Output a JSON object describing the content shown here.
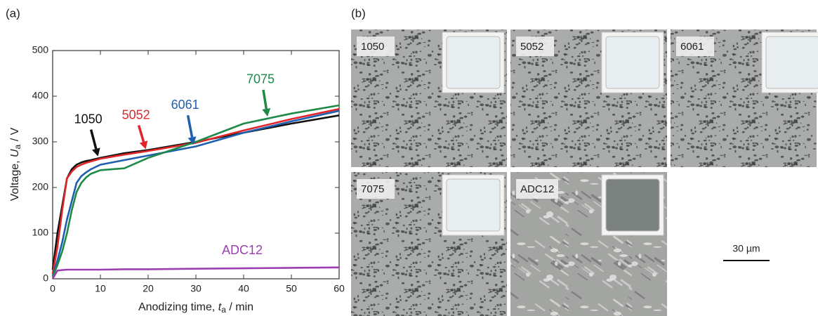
{
  "panel_labels": [
    "(a)",
    "(b)"
  ],
  "chart_data": {
    "type": "line",
    "xlabel": {
      "text": "Anodizing time, ",
      "symbol": "t",
      "subscript": "a",
      "unit": " / min"
    },
    "ylabel": {
      "text": "Voltage, ",
      "symbol": "U",
      "subscript": "a",
      "unit": " / V"
    },
    "x": [
      0,
      1,
      2,
      3,
      4,
      5,
      6,
      7,
      8,
      10,
      15,
      20,
      30,
      40,
      50,
      60
    ],
    "series": [
      {
        "name": "1050",
        "color": "#111111",
        "values": [
          20,
          100,
          160,
          220,
          240,
          250,
          255,
          258,
          260,
          265,
          275,
          282,
          300,
          320,
          340,
          358
        ]
      },
      {
        "name": "5052",
        "color": "#e0262b",
        "values": [
          10,
          70,
          150,
          220,
          235,
          245,
          250,
          254,
          257,
          263,
          272,
          280,
          298,
          325,
          350,
          372
        ]
      },
      {
        "name": "6061",
        "color": "#1f5fb0",
        "values": [
          5,
          40,
          80,
          130,
          170,
          210,
          225,
          233,
          240,
          250,
          260,
          270,
          290,
          320,
          345,
          368
        ]
      },
      {
        "name": "7075",
        "color": "#1e8a48",
        "values": [
          5,
          30,
          60,
          100,
          150,
          190,
          210,
          222,
          230,
          238,
          242,
          265,
          300,
          340,
          362,
          380
        ]
      },
      {
        "name": "ADC12",
        "color": "#9b3fb0",
        "values": [
          0,
          18,
          19,
          20,
          20,
          20,
          20,
          20,
          20,
          20,
          21,
          21,
          22,
          23,
          24,
          25
        ]
      }
    ],
    "xlim": [
      0,
      60
    ],
    "xticks": [
      0,
      10,
      20,
      30,
      40,
      50,
      60
    ],
    "ylim": [
      0,
      500
    ],
    "yticks": [
      0,
      100,
      200,
      300,
      400,
      500
    ]
  },
  "micrographs": [
    {
      "label": "1050"
    },
    {
      "label": "5052"
    },
    {
      "label": "6061"
    },
    {
      "label": "7075"
    },
    {
      "label": "ADC12"
    }
  ],
  "scale_bar": "30 µm"
}
